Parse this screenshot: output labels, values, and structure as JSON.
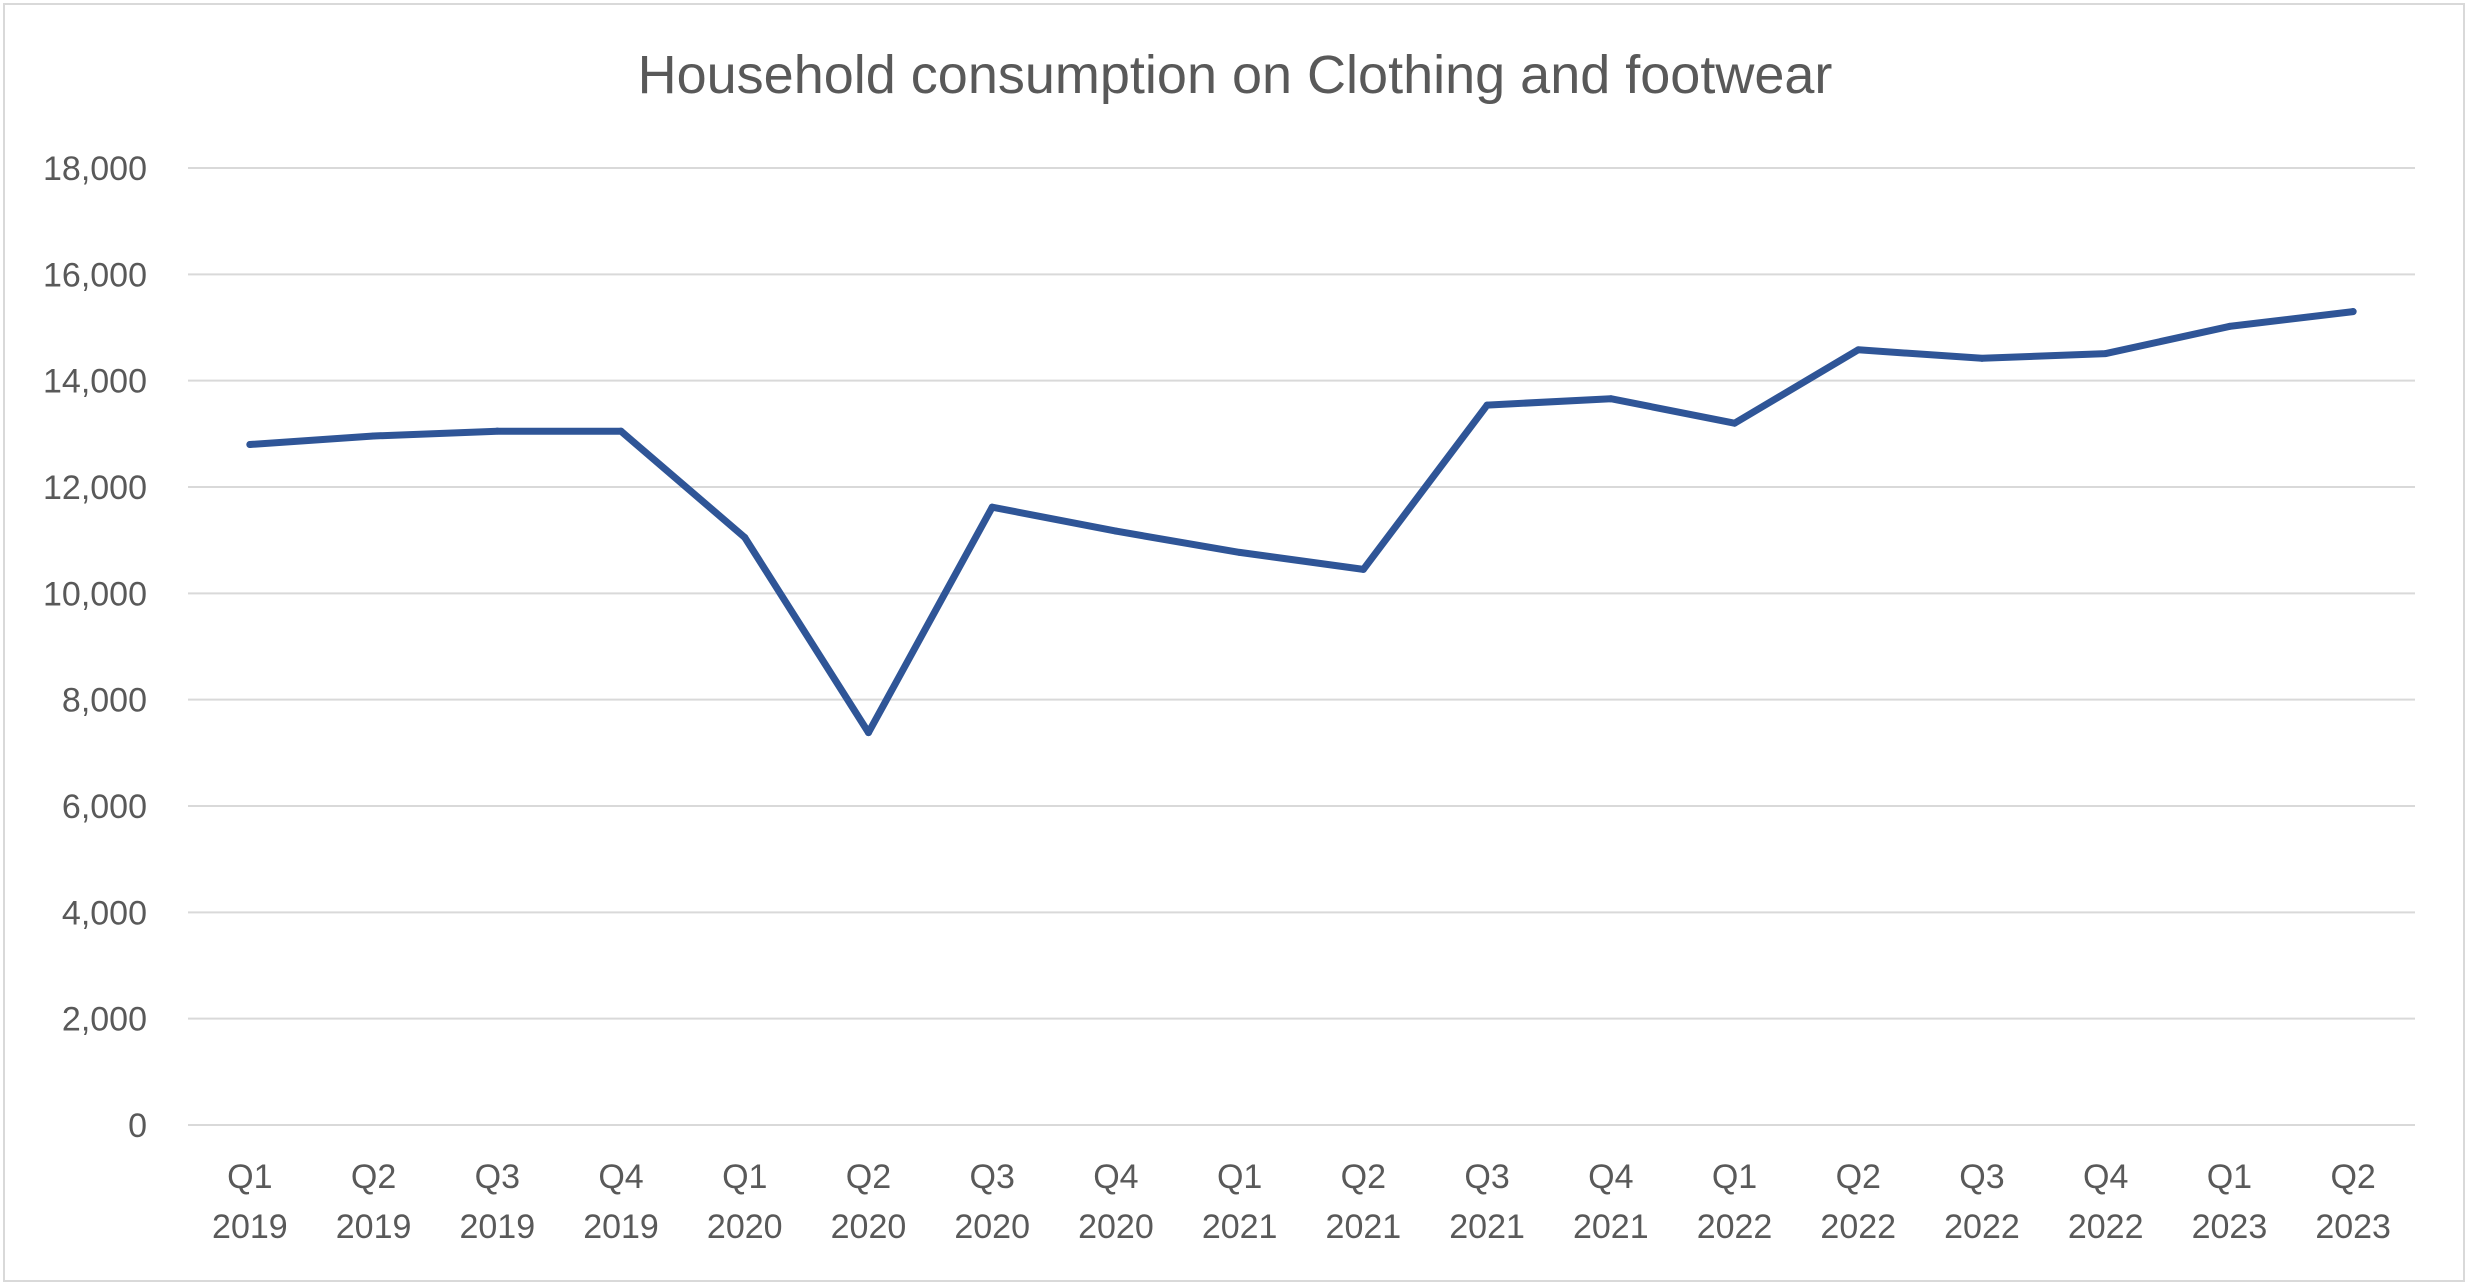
{
  "chart_data": {
    "type": "line",
    "title": "Household consumption on Clothing and footwear",
    "xlabel": "",
    "ylabel": "",
    "categories": [
      [
        "Q1",
        "2019"
      ],
      [
        "Q2",
        "2019"
      ],
      [
        "Q3",
        "2019"
      ],
      [
        "Q4",
        "2019"
      ],
      [
        "Q1",
        "2020"
      ],
      [
        "Q2",
        "2020"
      ],
      [
        "Q3",
        "2020"
      ],
      [
        "Q4",
        "2020"
      ],
      [
        "Q1",
        "2021"
      ],
      [
        "Q2",
        "2021"
      ],
      [
        "Q3",
        "2021"
      ],
      [
        "Q4",
        "2021"
      ],
      [
        "Q1",
        "2022"
      ],
      [
        "Q2",
        "2022"
      ],
      [
        "Q3",
        "2022"
      ],
      [
        "Q4",
        "2022"
      ],
      [
        "Q1",
        "2023"
      ],
      [
        "Q2",
        "2023"
      ]
    ],
    "series": [
      {
        "values": [
          12800,
          12960,
          13050,
          13050,
          11050,
          7380,
          11620,
          11170,
          10770,
          10450,
          13540,
          13660,
          13200,
          14580,
          14420,
          14510,
          15020,
          15300
        ]
      }
    ],
    "ylim": [
      0,
      18000
    ],
    "yticks": [
      0,
      2000,
      4000,
      6000,
      8000,
      10000,
      12000,
      14000,
      16000,
      18000
    ],
    "ytick_labels": [
      "0",
      "2,000",
      "4,000",
      "6,000",
      "8,000",
      "10,000",
      "12,000",
      "14,000",
      "16,000",
      "18,000"
    ],
    "grid": true,
    "legend": "none",
    "colors": {
      "line": "#2f5597",
      "grid": "#d9d9d9",
      "text": "#595959",
      "border": "#d9d9d9"
    }
  }
}
